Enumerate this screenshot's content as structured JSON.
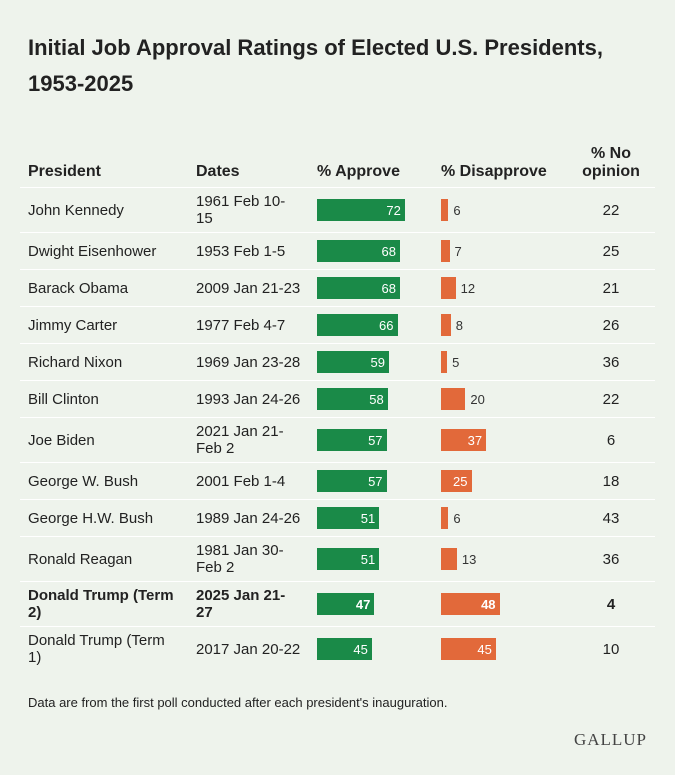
{
  "title": "Initial Job Approval Ratings of Elected U.S. Presidents, 1953-2025",
  "columns": [
    "President",
    "Dates",
    "% Approve",
    "% Disapprove",
    "% No opinion"
  ],
  "colors": {
    "approve": "#1a8a48",
    "disapprove": "#e2693a"
  },
  "highlight_row": 10,
  "rows": [
    {
      "president": "John Kennedy",
      "dates": "1961 Feb 10-15",
      "approve": 72,
      "disapprove": 6,
      "no_opinion": 22
    },
    {
      "president": "Dwight Eisenhower",
      "dates": "1953 Feb 1-5",
      "approve": 68,
      "disapprove": 7,
      "no_opinion": 25
    },
    {
      "president": "Barack Obama",
      "dates": "2009 Jan 21-23",
      "approve": 68,
      "disapprove": 12,
      "no_opinion": 21
    },
    {
      "president": "Jimmy Carter",
      "dates": "1977 Feb 4-7",
      "approve": 66,
      "disapprove": 8,
      "no_opinion": 26
    },
    {
      "president": "Richard Nixon",
      "dates": "1969 Jan 23-28",
      "approve": 59,
      "disapprove": 5,
      "no_opinion": 36
    },
    {
      "president": "Bill Clinton",
      "dates": "1993 Jan 24-26",
      "approve": 58,
      "disapprove": 20,
      "no_opinion": 22
    },
    {
      "president": "Joe Biden",
      "dates": "2021 Jan 21-Feb 2",
      "approve": 57,
      "disapprove": 37,
      "no_opinion": 6
    },
    {
      "president": "George W. Bush",
      "dates": "2001 Feb 1-4",
      "approve": 57,
      "disapprove": 25,
      "no_opinion": 18
    },
    {
      "president": "George H.W. Bush",
      "dates": "1989 Jan 24-26",
      "approve": 51,
      "disapprove": 6,
      "no_opinion": 43
    },
    {
      "president": "Ronald Reagan",
      "dates": "1981 Jan 30-Feb 2",
      "approve": 51,
      "disapprove": 13,
      "no_opinion": 36
    },
    {
      "president": "Donald Trump (Term 2)",
      "dates": "2025 Jan 21-27",
      "approve": 47,
      "disapprove": 48,
      "no_opinion": 4
    },
    {
      "president": "Donald Trump (Term 1)",
      "dates": "2017 Jan 20-22",
      "approve": 45,
      "disapprove": 45,
      "no_opinion": 10
    }
  ],
  "note": "Data are from the first poll conducted after each president's inauguration.",
  "logo": "GALLUP"
}
